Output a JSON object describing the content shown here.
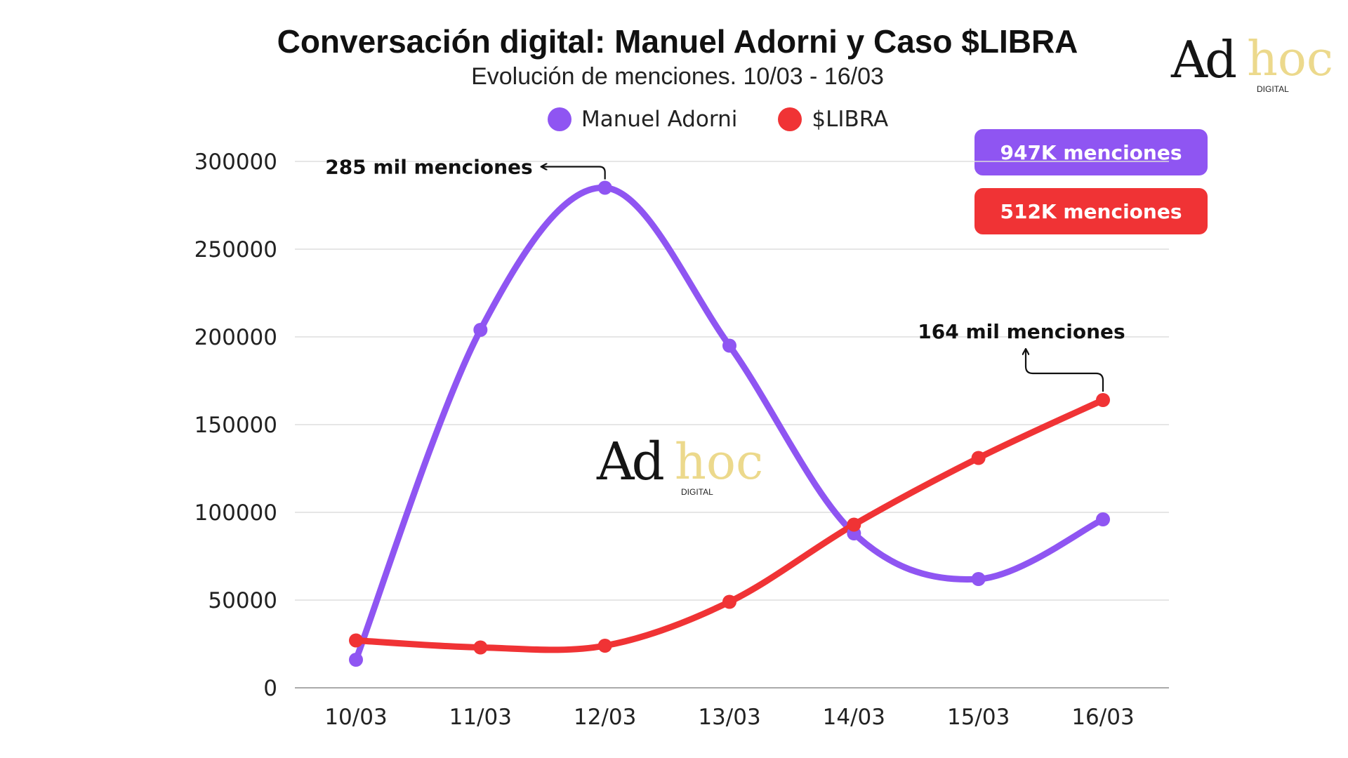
{
  "header": {
    "title": "Conversación digital: Manuel Adorni y Caso $LIBRA",
    "subtitle": "Evolución de menciones.  10/03 - 16/03"
  },
  "logo": {
    "ad": "Ad",
    "hoc": "hoc",
    "digital": "DIGITAL",
    "gold_color": "#ecd98c"
  },
  "badges": {
    "adorni_total": "947K menciones",
    "libra_total": "512K menciones"
  },
  "colors": {
    "adorni": "#8f55f2",
    "libra": "#f03335",
    "grid": "#dddddd",
    "axis": "#aaaaaa"
  },
  "chart_data": {
    "type": "line",
    "title": "Conversación digital: Manuel Adorni y Caso $LIBRA",
    "subtitle": "Evolución de menciones.  10/03 - 16/03",
    "xlabel": "",
    "ylabel": "",
    "categories": [
      "10/03",
      "11/03",
      "12/03",
      "13/03",
      "14/03",
      "15/03",
      "16/03"
    ],
    "ylim": [
      0,
      300000
    ],
    "yticks": [
      0,
      50000,
      100000,
      150000,
      200000,
      250000,
      300000
    ],
    "ytick_labels": [
      "0",
      "50000",
      "100000",
      "150000",
      "200000",
      "250000",
      "300000"
    ],
    "grid": true,
    "legend": "top-center",
    "series": [
      {
        "name": "Manuel Adorni",
        "color": "#8f55f2",
        "values": [
          16000,
          204000,
          285000,
          195000,
          88000,
          62000,
          96000
        ]
      },
      {
        "name": "$LIBRA",
        "color": "#f03335",
        "values": [
          27000,
          23000,
          24000,
          49000,
          93000,
          131000,
          164000
        ]
      }
    ],
    "annotations": [
      {
        "text": "285 mil menciones",
        "series": 0,
        "index": 2
      },
      {
        "text": "164 mil menciones",
        "series": 1,
        "index": 6
      }
    ]
  }
}
